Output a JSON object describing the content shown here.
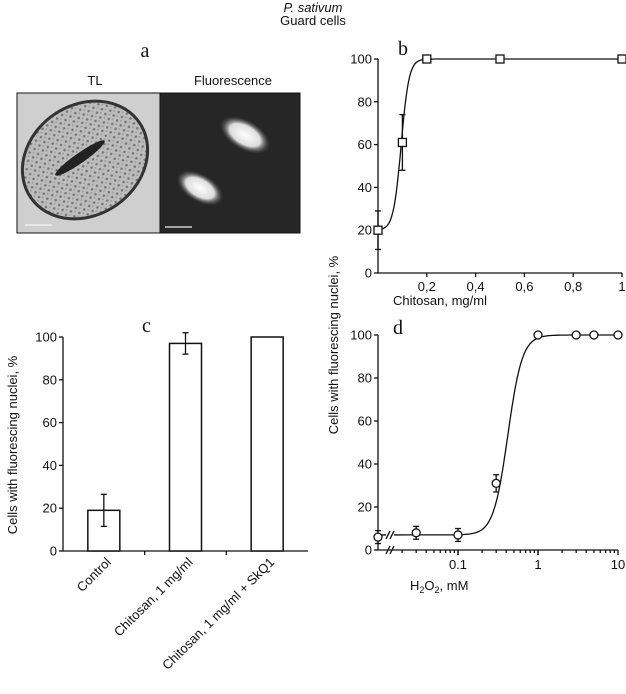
{
  "header": {
    "species": "P. sativum",
    "subtitle": "Guard cells"
  },
  "panel_a": {
    "label": "a",
    "left_title": "TL",
    "right_title": "Fluorescence"
  },
  "chart_data": [
    {
      "panel": "b",
      "type": "line",
      "xlabel": "Chitosan, mg/ml",
      "ylabel": "Cells with fluorescing nuclei, %",
      "xlim": [
        0,
        1
      ],
      "ylim": [
        0,
        100
      ],
      "xticks": [
        "0,2",
        "0,4",
        "0,6",
        "0,8",
        "1"
      ],
      "xtick_values": [
        0.2,
        0.4,
        0.6,
        0.8,
        1
      ],
      "yticks": [
        0,
        20,
        40,
        60,
        80,
        100
      ],
      "x": [
        0,
        0.1,
        0.2,
        0.5,
        1
      ],
      "y": [
        20,
        61,
        100,
        100,
        100
      ],
      "err": [
        9,
        13,
        0,
        0,
        0
      ],
      "marker": "square"
    },
    {
      "panel": "c",
      "type": "bar",
      "ylabel": "Cells with fluorescing nuclei, %",
      "ylim": [
        0,
        100
      ],
      "yticks": [
        0,
        20,
        40,
        60,
        80,
        100
      ],
      "categories": [
        "Control",
        "Chitosan, 1 mg/ml",
        "Chitosan, 1 mg/ml + SkQ1"
      ],
      "values": [
        19,
        97,
        100
      ],
      "err": [
        7.5,
        5,
        0
      ]
    },
    {
      "panel": "d",
      "type": "line",
      "xscale": "log",
      "xlabel_main": "H",
      "xlabel_sub1": "2",
      "xlabel_mid": "O",
      "xlabel_sub2": "2",
      "xlabel_unit": ", mM",
      "xlim": [
        0.01,
        10
      ],
      "ylim": [
        0,
        100
      ],
      "xticks": [
        "0.1",
        "1",
        "10"
      ],
      "xtick_values": [
        0.1,
        1,
        10
      ],
      "yticks": [
        0,
        20,
        40,
        60,
        80,
        100
      ],
      "x": [
        0,
        0.03,
        0.1,
        0.3,
        1,
        3,
        5,
        10
      ],
      "y": [
        6,
        8,
        7,
        31,
        100,
        100,
        100,
        100
      ],
      "err": [
        3,
        3,
        3,
        4,
        0,
        0,
        0,
        0
      ],
      "marker": "circle",
      "axis_break": true
    }
  ]
}
